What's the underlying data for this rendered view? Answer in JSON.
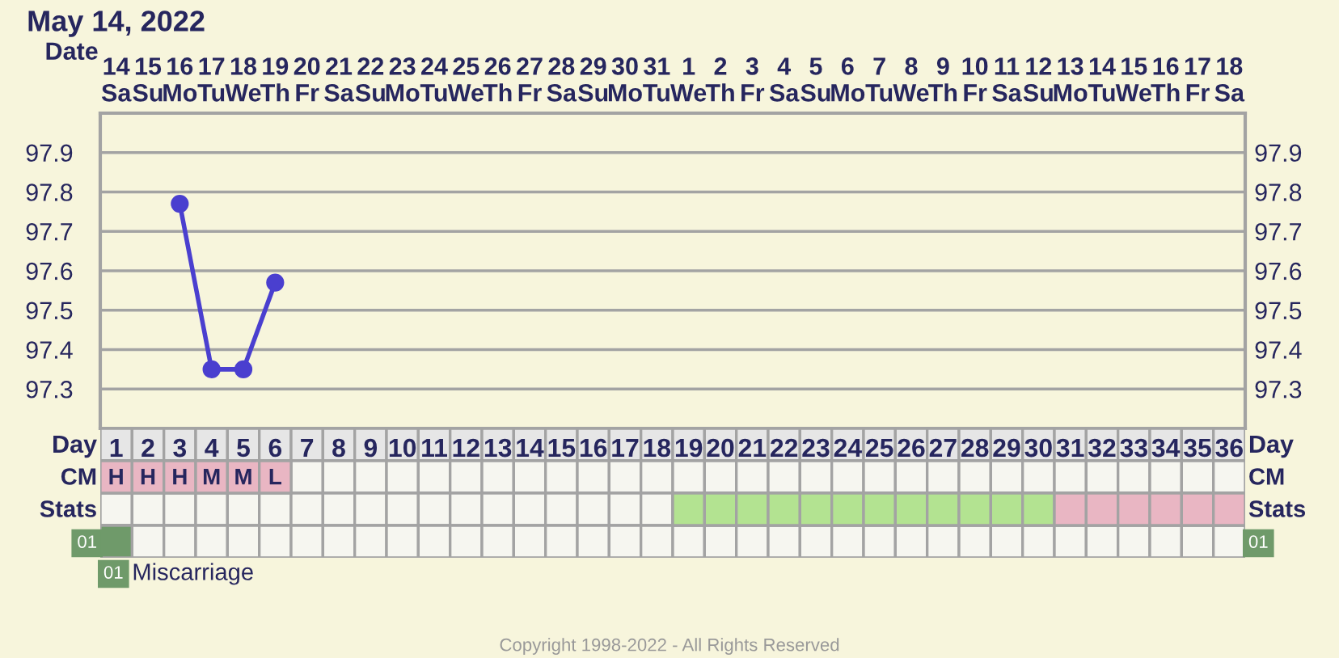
{
  "chart_data": [
    {
      "type": "line",
      "title": "May 14, 2022",
      "xlabel": "Date",
      "categories": [
        "14\nSa",
        "15\nSu",
        "16\nMo",
        "17\nTu",
        "18\nWe",
        "19\nTh",
        "20\nFr",
        "21\nSa",
        "22\nSu",
        "23\nMo",
        "24\nTu",
        "25\nWe",
        "26\nTh",
        "27\nFr",
        "28\nSa",
        "29\nSu",
        "30\nMo",
        "31\nTu",
        "1\nWe",
        "2\nTh",
        "3\nFr",
        "4\nSa",
        "5\nSu",
        "6\nMo",
        "7\nTu",
        "8\nWe",
        "9\nTh",
        "10\nFr",
        "11\nSa",
        "12\nSu",
        "13\nMo",
        "14\nTu",
        "15\nWe",
        "16\nTh",
        "17\nFr",
        "18\nSa"
      ],
      "series": [
        {
          "color": "#4a3fcf",
          "values": [
            null,
            null,
            97.77,
            97.35,
            97.35,
            97.57,
            null,
            null,
            null,
            null,
            null,
            null,
            null,
            null,
            null,
            null,
            null,
            null,
            null,
            null,
            null,
            null,
            null,
            null,
            null,
            null,
            null,
            null,
            null,
            null,
            null,
            null,
            null,
            null,
            null,
            null
          ]
        }
      ],
      "marker": "circle",
      "line_style": "solid",
      "ylim": [
        97.2,
        98.0
      ],
      "yticks": [
        97.3,
        97.4,
        97.5,
        97.6,
        97.7,
        97.8,
        97.9
      ],
      "y2lim": [
        97.2,
        98.0
      ],
      "y2ticks": [
        97.3,
        97.4,
        97.5,
        97.6,
        97.7,
        97.8,
        97.9
      ],
      "grid": true,
      "legend": false
    },
    {
      "type": "heatmap",
      "xlabel": "Day",
      "categories": [
        "1",
        "2",
        "3",
        "4",
        "5",
        "6",
        "7",
        "8",
        "9",
        "10",
        "11",
        "12",
        "13",
        "14",
        "15",
        "16",
        "17",
        "18",
        "19",
        "20",
        "21",
        "22",
        "23",
        "24",
        "25",
        "26",
        "27",
        "28",
        "29",
        "30",
        "31",
        "32",
        "33",
        "34",
        "35",
        "36"
      ],
      "y_categories": [
        "CM",
        "Stats",
        "01"
      ],
      "y2_categories": [
        "CM",
        "Stats",
        "01"
      ],
      "cells": [
        [
          null,
          null,
          null,
          null,
          null,
          null,
          null,
          null,
          null,
          null,
          null,
          null,
          null,
          null,
          null,
          null,
          null,
          null,
          null,
          null,
          null,
          null,
          null,
          null,
          null,
          null,
          null,
          null,
          null,
          null,
          null,
          null,
          null,
          null,
          null,
          null
        ],
        [
          null,
          null,
          null,
          null,
          null,
          null,
          null,
          null,
          null,
          null,
          null,
          null,
          null,
          null,
          null,
          null,
          null,
          null,
          null,
          null,
          null,
          null,
          null,
          null,
          null,
          null,
          null,
          null,
          null,
          null,
          null,
          null,
          null,
          null,
          null,
          null
        ],
        [
          null,
          null,
          null,
          null,
          null,
          null,
          null,
          null,
          null,
          null,
          null,
          null,
          null,
          null,
          null,
          null,
          null,
          null,
          null,
          null,
          null,
          null,
          null,
          null,
          null,
          null,
          null,
          null,
          null,
          null,
          null,
          null,
          null,
          null,
          null,
          null
        ]
      ],
      "cell_labels": [
        [
          "H",
          "H",
          "H",
          "M",
          "M",
          "L",
          null,
          null,
          null,
          null,
          null,
          null,
          null,
          null,
          null,
          null,
          null,
          null,
          null,
          null,
          null,
          null,
          null,
          null,
          null,
          null,
          null,
          null,
          null,
          null,
          null,
          null,
          null,
          null,
          null,
          null
        ],
        [
          null,
          null,
          null,
          null,
          null,
          null,
          null,
          null,
          null,
          null,
          null,
          null,
          null,
          null,
          null,
          null,
          null,
          null,
          null,
          null,
          null,
          null,
          null,
          null,
          null,
          null,
          null,
          null,
          null,
          null,
          null,
          null,
          null,
          null,
          null,
          null
        ],
        [
          null,
          null,
          null,
          null,
          null,
          null,
          null,
          null,
          null,
          null,
          null,
          null,
          null,
          null,
          null,
          null,
          null,
          null,
          null,
          null,
          null,
          null,
          null,
          null,
          null,
          null,
          null,
          null,
          null,
          null,
          null,
          null,
          null,
          null,
          null,
          null
        ]
      ],
      "colors": [
        [
          "#e9b6c3",
          "#e9b6c3",
          "#e9b6c3",
          "#e9b6c3",
          "#e9b6c3",
          "#e9b6c3",
          null,
          null,
          null,
          null,
          null,
          null,
          null,
          null,
          null,
          null,
          null,
          null,
          null,
          null,
          null,
          null,
          null,
          null,
          null,
          null,
          null,
          null,
          null,
          null,
          null,
          null,
          null,
          null,
          null,
          null
        ],
        [
          null,
          null,
          null,
          null,
          null,
          null,
          null,
          null,
          null,
          null,
          null,
          null,
          null,
          null,
          null,
          null,
          null,
          null,
          "#b3e391",
          "#b3e391",
          "#b3e391",
          "#b3e391",
          "#b3e391",
          "#b3e391",
          "#b3e391",
          "#b3e391",
          "#b3e391",
          "#b3e391",
          "#b3e391",
          "#b3e391",
          "#e9b6c3",
          "#e9b6c3",
          "#e9b6c3",
          "#e9b6c3",
          "#e9b6c3",
          "#e9b6c3"
        ],
        [
          "#6f9a6a",
          null,
          null,
          null,
          null,
          null,
          null,
          null,
          null,
          null,
          null,
          null,
          null,
          null,
          null,
          null,
          null,
          null,
          null,
          null,
          null,
          null,
          null,
          null,
          null,
          null,
          null,
          null,
          null,
          null,
          null,
          null,
          null,
          null,
          null,
          null
        ]
      ],
      "annotations": [
        "Miscarriage",
        "Copyright 1998-2022 - All Rights Reserved"
      ]
    }
  ]
}
